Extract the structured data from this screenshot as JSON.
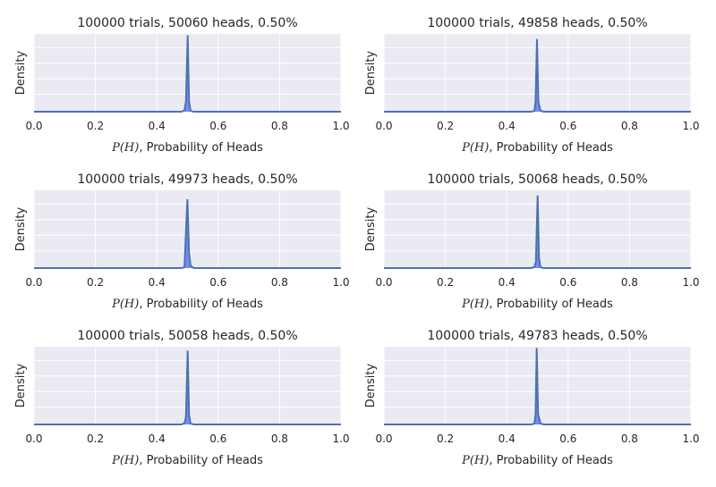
{
  "chart_data": [
    {
      "type": "area",
      "title": "100000 trials, 50060 heads, 0.50%",
      "xlabel_math": "P(H)",
      "xlabel": ", Probability of Heads",
      "ylabel": "Density",
      "xlim": [
        0,
        1
      ],
      "ylim": [
        0,
        300
      ],
      "xticks": [
        "0.0",
        "0.2",
        "0.4",
        "0.6",
        "0.8",
        "1.0"
      ],
      "x": [
        0,
        0.48,
        0.49,
        0.495,
        0.5006,
        0.505,
        0.51,
        0.52,
        1
      ],
      "y": [
        0,
        0,
        5,
        40,
        295,
        40,
        3,
        0,
        0
      ]
    },
    {
      "type": "area",
      "title": "100000 trials, 49858 heads, 0.50%",
      "xlabel_math": "P(H)",
      "xlabel": ", Probability of Heads",
      "ylabel": "Density",
      "xlim": [
        0,
        1
      ],
      "ylim": [
        0,
        300
      ],
      "xticks": [
        "0.0",
        "0.2",
        "0.4",
        "0.6",
        "0.8",
        "1.0"
      ],
      "x": [
        0,
        0.48,
        0.49,
        0.494,
        0.4986,
        0.503,
        0.51,
        0.52,
        1
      ],
      "y": [
        0,
        0,
        3,
        40,
        280,
        40,
        4,
        0,
        0
      ]
    },
    {
      "type": "area",
      "title": "100000 trials, 49973 heads, 0.50%",
      "xlabel_math": "P(H)",
      "xlabel": ", Probability of Heads",
      "ylabel": "Density",
      "xlim": [
        0,
        1
      ],
      "ylim": [
        0,
        300
      ],
      "xticks": [
        "0.0",
        "0.2",
        "0.4",
        "0.6",
        "0.8",
        "1.0"
      ],
      "x": [
        0,
        0.48,
        0.49,
        0.4997,
        0.505,
        0.51,
        0.52,
        1
      ],
      "y": [
        0,
        0,
        3,
        265,
        60,
        10,
        0,
        0
      ]
    },
    {
      "type": "area",
      "title": "100000 trials, 50068 heads, 0.50%",
      "xlabel_math": "P(H)",
      "xlabel": ", Probability of Heads",
      "ylabel": "Density",
      "xlim": [
        0,
        1
      ],
      "ylim": [
        0,
        300
      ],
      "xticks": [
        "0.0",
        "0.2",
        "0.4",
        "0.6",
        "0.8",
        "1.0"
      ],
      "x": [
        0,
        0.48,
        0.49,
        0.495,
        0.5007,
        0.505,
        0.51,
        0.52,
        1
      ],
      "y": [
        0,
        0,
        4,
        25,
        280,
        40,
        3,
        0,
        0
      ]
    },
    {
      "type": "area",
      "title": "100000 trials, 50058 heads, 0.50%",
      "xlabel_math": "P(H)",
      "xlabel": ", Probability of Heads",
      "ylabel": "Density",
      "xlim": [
        0,
        1
      ],
      "ylim": [
        0,
        300
      ],
      "xticks": [
        "0.0",
        "0.2",
        "0.4",
        "0.6",
        "0.8",
        "1.0"
      ],
      "x": [
        0,
        0.48,
        0.49,
        0.495,
        0.5006,
        0.505,
        0.51,
        0.52,
        1
      ],
      "y": [
        0,
        0,
        5,
        30,
        285,
        40,
        3,
        0,
        0
      ]
    },
    {
      "type": "area",
      "title": "100000 trials, 49783 heads, 0.50%",
      "xlabel_math": "P(H)",
      "xlabel": ", Probability of Heads",
      "ylabel": "Density",
      "xlim": [
        0,
        1
      ],
      "ylim": [
        0,
        300
      ],
      "xticks": [
        "0.0",
        "0.2",
        "0.4",
        "0.6",
        "0.8",
        "1.0"
      ],
      "x": [
        0,
        0.48,
        0.49,
        0.494,
        0.4978,
        0.502,
        0.51,
        0.52,
        1
      ],
      "y": [
        0,
        0,
        3,
        40,
        295,
        40,
        3,
        0,
        0
      ]
    }
  ],
  "colors": {
    "background": "#eaeaf2",
    "grid": "#ffffff",
    "line": "#4c72b0",
    "fill": "#6a7ff0"
  }
}
